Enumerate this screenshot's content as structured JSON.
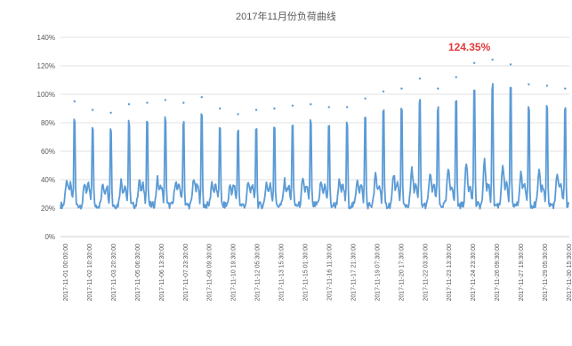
{
  "chart_data": {
    "type": "line",
    "title": "2017年11月份负荷曲线",
    "y_unit": "%",
    "ylim": [
      0,
      140
    ],
    "y_ticks": [
      "0%",
      "20%",
      "40%",
      "60%",
      "80%",
      "100%",
      "120%",
      "140%"
    ],
    "grid": "horizontal",
    "legend": "none",
    "series_color": "#5b9bd5",
    "x_tick_labels": [
      "2017-11-01 00:00:00",
      "2017-11-02 10:30:00",
      "2017-11-03 20:30:00",
      "2017-11-05 06:30:00",
      "2017-11-06 13:30:00",
      "2017-11-07 23:30:00",
      "2017-11-09 09:30:00",
      "2017-11-10 19:30:00",
      "2017-11-12 05:30:00",
      "2017-11-13 15:30:00",
      "2017-11-15 01:30:00",
      "2017-11-16 11:30:00",
      "2017-11-17 21:30:00",
      "2017-11-19 07:30:00",
      "2017-11-20 17:30:00",
      "2017-11-22 03:30:00",
      "2017-11-23 13:30:00",
      "2017-11-24 23:30:00",
      "2017-11-26 09:30:00",
      "2017-11-27 19:30:00",
      "2017-11-29 05:30:00",
      "2017-11-30 15:30:00"
    ],
    "daily_peaks": [
      95,
      89,
      87,
      93,
      94,
      96,
      94,
      98,
      90,
      86,
      89,
      90,
      92,
      93,
      91,
      91,
      97,
      102,
      104,
      111,
      104,
      112,
      122,
      124.35,
      121,
      107,
      106,
      104
    ],
    "daily_min": 18,
    "annotation": {
      "text": "124.35%",
      "day_index": 23
    }
  }
}
